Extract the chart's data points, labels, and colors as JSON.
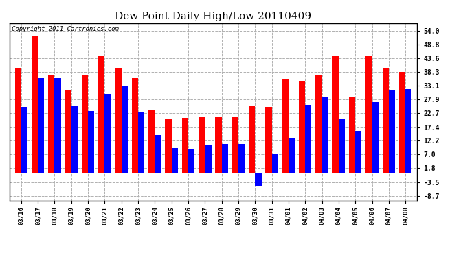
{
  "title": "Dew Point Daily High/Low 20110409",
  "copyright": "Copyright 2011 Cartronics.com",
  "dates": [
    "03/16",
    "03/17",
    "03/18",
    "03/19",
    "03/20",
    "03/21",
    "03/22",
    "03/23",
    "03/24",
    "03/25",
    "03/26",
    "03/27",
    "03/28",
    "03/29",
    "03/30",
    "03/31",
    "04/01",
    "04/02",
    "04/03",
    "04/04",
    "04/05",
    "04/06",
    "04/07",
    "04/08"
  ],
  "high": [
    40.0,
    52.0,
    37.5,
    31.5,
    37.0,
    44.6,
    40.0,
    36.0,
    24.0,
    20.5,
    21.0,
    21.5,
    21.5,
    21.5,
    25.5,
    25.0,
    35.5,
    35.0,
    37.5,
    44.5,
    29.0,
    44.5,
    40.0,
    38.5
  ],
  "low": [
    25.0,
    36.0,
    36.0,
    25.5,
    23.5,
    30.0,
    33.0,
    23.0,
    14.5,
    9.5,
    9.0,
    10.5,
    11.0,
    11.0,
    -5.0,
    7.5,
    13.5,
    26.0,
    29.0,
    20.5,
    16.0,
    27.0,
    31.5,
    32.0
  ],
  "high_color": "#ff0000",
  "low_color": "#0000ff",
  "bg_color": "#ffffff",
  "plot_bg": "#ffffff",
  "grid_color": "#b0b0b0",
  "yticks": [
    54.0,
    48.8,
    43.6,
    38.3,
    33.1,
    27.9,
    22.7,
    17.4,
    12.2,
    7.0,
    1.8,
    -3.5,
    -8.7
  ],
  "ylim": [
    -10.5,
    57.0
  ],
  "bar_width": 0.38
}
